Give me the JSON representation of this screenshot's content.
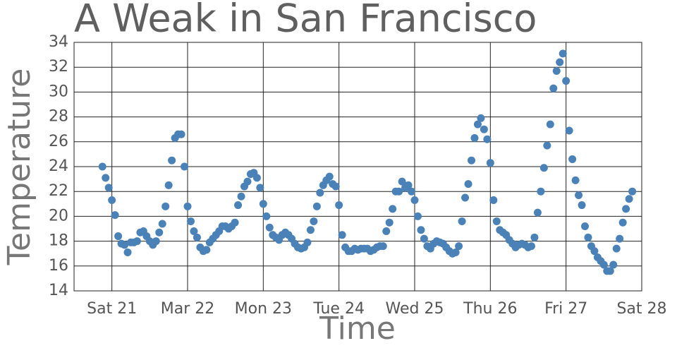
{
  "chart_data": {
    "type": "scatter",
    "title": "A Weak in San Francisco",
    "x_label": "Time",
    "y_label": "Temperature",
    "xlim": [
      -12,
      168
    ],
    "xticks": [
      {
        "value": 0,
        "label": "Sat 21"
      },
      {
        "value": 24,
        "label": "Mar 22"
      },
      {
        "value": 48,
        "label": "Mon 23"
      },
      {
        "value": 72,
        "label": "Tue 24"
      },
      {
        "value": 96,
        "label": "Wed 25"
      },
      {
        "value": 120,
        "label": "Thu 26"
      },
      {
        "value": 144,
        "label": "Fri 27"
      },
      {
        "value": 168,
        "label": "Sat 28"
      }
    ],
    "ylim": [
      14,
      34
    ],
    "yticks": [
      14,
      16,
      18,
      20,
      22,
      24,
      26,
      28,
      30,
      32,
      34
    ],
    "grid": true,
    "color": "#4a82b8",
    "x": [
      -3,
      -2,
      -1,
      0,
      1,
      2,
      3,
      4,
      5,
      6,
      7,
      8,
      9,
      10,
      11,
      12,
      13,
      14,
      15,
      16,
      17,
      18,
      19,
      20,
      21,
      22,
      23,
      24,
      25,
      26,
      27,
      28,
      29,
      30,
      31,
      32,
      33,
      34,
      35,
      36,
      37,
      38,
      39,
      40,
      41,
      42,
      43,
      44,
      45,
      46,
      47,
      48,
      49,
      50,
      51,
      52,
      53,
      54,
      55,
      56,
      57,
      58,
      59,
      60,
      61,
      62,
      63,
      64,
      65,
      66,
      67,
      68,
      69,
      70,
      71,
      72,
      73,
      74,
      75,
      76,
      77,
      78,
      79,
      80,
      81,
      82,
      83,
      84,
      85,
      86,
      87,
      88,
      89,
      90,
      91,
      92,
      93,
      94,
      95,
      96,
      97,
      98,
      99,
      100,
      101,
      102,
      103,
      104,
      105,
      106,
      107,
      108,
      109,
      110,
      111,
      112,
      113,
      114,
      115,
      116,
      117,
      118,
      119,
      120,
      121,
      122,
      123,
      124,
      125,
      126,
      127,
      128,
      129,
      130,
      131,
      132,
      133,
      134,
      135,
      136,
      137,
      138,
      139,
      140,
      141,
      142,
      143,
      144,
      145,
      146,
      147,
      148,
      149,
      150,
      151,
      152,
      153,
      154,
      155,
      156,
      157,
      158,
      159,
      160,
      161,
      162,
      163,
      164,
      165
    ],
    "values": [
      24.0,
      23.1,
      22.3,
      21.3,
      20.1,
      18.4,
      17.8,
      17.7,
      17.1,
      17.9,
      17.9,
      18.0,
      18.7,
      18.8,
      18.4,
      18.0,
      17.7,
      18.0,
      18.7,
      19.4,
      20.8,
      22.5,
      24.5,
      26.3,
      26.6,
      26.6,
      24.0,
      20.8,
      19.6,
      18.8,
      18.3,
      17.5,
      17.2,
      17.3,
      17.9,
      18.2,
      18.5,
      18.8,
      19.2,
      19.2,
      19.0,
      19.2,
      19.5,
      20.9,
      21.6,
      22.4,
      22.8,
      23.4,
      23.5,
      23.1,
      22.3,
      21.0,
      20.0,
      19.1,
      18.5,
      18.3,
      18.1,
      18.5,
      18.7,
      18.5,
      18.2,
      17.8,
      17.5,
      17.4,
      17.5,
      17.9,
      18.9,
      19.6,
      20.8,
      21.9,
      22.5,
      22.9,
      23.2,
      22.6,
      22.4,
      20.9,
      18.5,
      17.5,
      17.2,
      17.2,
      17.4,
      17.3,
      17.4,
      17.4,
      17.4,
      17.2,
      17.3,
      17.5,
      17.6,
      17.6,
      18.8,
      19.5,
      20.6,
      22.0,
      22.0,
      22.8,
      22.3,
      22.5,
      22.0,
      21.3,
      20.0,
      18.9,
      18.2,
      17.6,
      17.4,
      17.8,
      18.0,
      17.9,
      17.8,
      17.5,
      17.2,
      17.0,
      17.1,
      17.6,
      19.6,
      21.5,
      22.6,
      24.5,
      26.3,
      27.4,
      27.9,
      27.0,
      26.2,
      24.3,
      21.3,
      19.6,
      18.9,
      18.7,
      18.5,
      18.1,
      17.8,
      17.5,
      17.7,
      17.8,
      17.7,
      17.5,
      17.6,
      18.3,
      20.3,
      22.0,
      23.9,
      25.7,
      27.4,
      30.3,
      31.7,
      32.4,
      33.1,
      30.9,
      26.9,
      24.6,
      22.9,
      21.7,
      20.9,
      19.2,
      18.3,
      17.6,
      17.2,
      16.7,
      16.4,
      16.1,
      15.6,
      15.6,
      16.1,
      17.4,
      18.2,
      19.5,
      20.6,
      21.4,
      22.0
    ]
  }
}
